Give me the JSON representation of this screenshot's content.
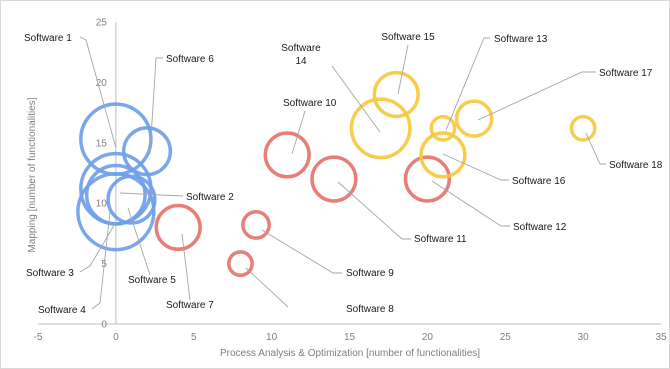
{
  "chart_data": {
    "type": "scatter",
    "subtype": "bubble",
    "title": "",
    "xlabel": "Process Analysis & Optimization [number of functionalities]",
    "ylabel": "Mapping [number of functionalities]",
    "xlim": [
      -5,
      35
    ],
    "ylim": [
      0,
      25
    ],
    "x_ticks": [
      "-5",
      "0",
      "5",
      "10",
      "15",
      "20",
      "25",
      "30",
      "35"
    ],
    "y_ticks": [
      "0",
      "5",
      "10",
      "15",
      "20",
      "25"
    ],
    "grid": false,
    "legend": "none",
    "colors": {
      "blue": "#6fa0ea",
      "red": "#e6736c",
      "yellow": "#f5c93d"
    },
    "series": [
      {
        "name": "Software 1",
        "color": "blue",
        "label_lines": [
          "Software 1"
        ],
        "points": [
          {
            "x": 0,
            "y": 15.3,
            "size": 2.4
          }
        ]
      },
      {
        "name": "Software 2",
        "color": "blue",
        "label_lines": [
          "Software 2"
        ],
        "points": [
          {
            "x": 0,
            "y": 11.2,
            "size": 2.4
          }
        ]
      },
      {
        "name": "Software 3",
        "color": "blue",
        "label_lines": [
          "Software 3"
        ],
        "points": [
          {
            "x": 0,
            "y": 9.3,
            "size": 2.6
          }
        ]
      },
      {
        "name": "Software 4",
        "color": "blue",
        "label_lines": [
          "Software 4"
        ],
        "points": [
          {
            "x": 0,
            "y": 10.7,
            "size": 2.0
          }
        ]
      },
      {
        "name": "Software 5",
        "color": "blue",
        "label_lines": [
          "Software 5"
        ],
        "points": [
          {
            "x": 1,
            "y": 10.3,
            "size": 1.6
          }
        ]
      },
      {
        "name": "Software 6",
        "color": "blue",
        "label_lines": [
          "Software 6"
        ],
        "points": [
          {
            "x": 2,
            "y": 14.3,
            "size": 1.6
          }
        ]
      },
      {
        "name": "Software 7",
        "color": "red",
        "label_lines": [
          "Software 7"
        ],
        "points": [
          {
            "x": 4,
            "y": 8.0,
            "size": 1.5
          }
        ]
      },
      {
        "name": "Software 8",
        "color": "red",
        "label_lines": [
          "Software 8"
        ],
        "points": [
          {
            "x": 8,
            "y": 5.0,
            "size": 0.8
          }
        ]
      },
      {
        "name": "Software 9",
        "color": "red",
        "label_lines": [
          "Software 9"
        ],
        "points": [
          {
            "x": 9,
            "y": 8.2,
            "size": 0.9
          }
        ]
      },
      {
        "name": "Software 10",
        "color": "red",
        "label_lines": [
          "Software 10"
        ],
        "points": [
          {
            "x": 11,
            "y": 14.0,
            "size": 1.5
          }
        ]
      },
      {
        "name": "Software 11",
        "color": "red",
        "label_lines": [
          "Software 11"
        ],
        "points": [
          {
            "x": 14,
            "y": 12.0,
            "size": 1.5
          }
        ]
      },
      {
        "name": "Software 12",
        "color": "red",
        "label_lines": [
          "Software 12"
        ],
        "points": [
          {
            "x": 20,
            "y": 12.0,
            "size": 1.5
          }
        ]
      },
      {
        "name": "Software 13",
        "color": "yellow",
        "label_lines": [
          "Software 13"
        ],
        "points": [
          {
            "x": 21,
            "y": 16.2,
            "size": 0.8
          }
        ]
      },
      {
        "name": "Software 14",
        "color": "yellow",
        "label_lines": [
          "Software",
          "14"
        ],
        "points": [
          {
            "x": 17,
            "y": 16.2,
            "size": 2.0
          }
        ]
      },
      {
        "name": "Software 15",
        "color": "yellow",
        "label_lines": [
          "Software 15"
        ],
        "points": [
          {
            "x": 18,
            "y": 19.0,
            "size": 1.5
          }
        ]
      },
      {
        "name": "Software 16",
        "color": "yellow",
        "label_lines": [
          "Software 16"
        ],
        "points": [
          {
            "x": 21,
            "y": 14.0,
            "size": 1.5
          }
        ]
      },
      {
        "name": "Software 17",
        "color": "yellow",
        "label_lines": [
          "Software 17"
        ],
        "points": [
          {
            "x": 23,
            "y": 17.0,
            "size": 1.2
          }
        ]
      },
      {
        "name": "Software 18",
        "color": "yellow",
        "label_lines": [
          "Software 18"
        ],
        "points": [
          {
            "x": 30,
            "y": 16.2,
            "size": 0.8
          }
        ]
      }
    ]
  }
}
